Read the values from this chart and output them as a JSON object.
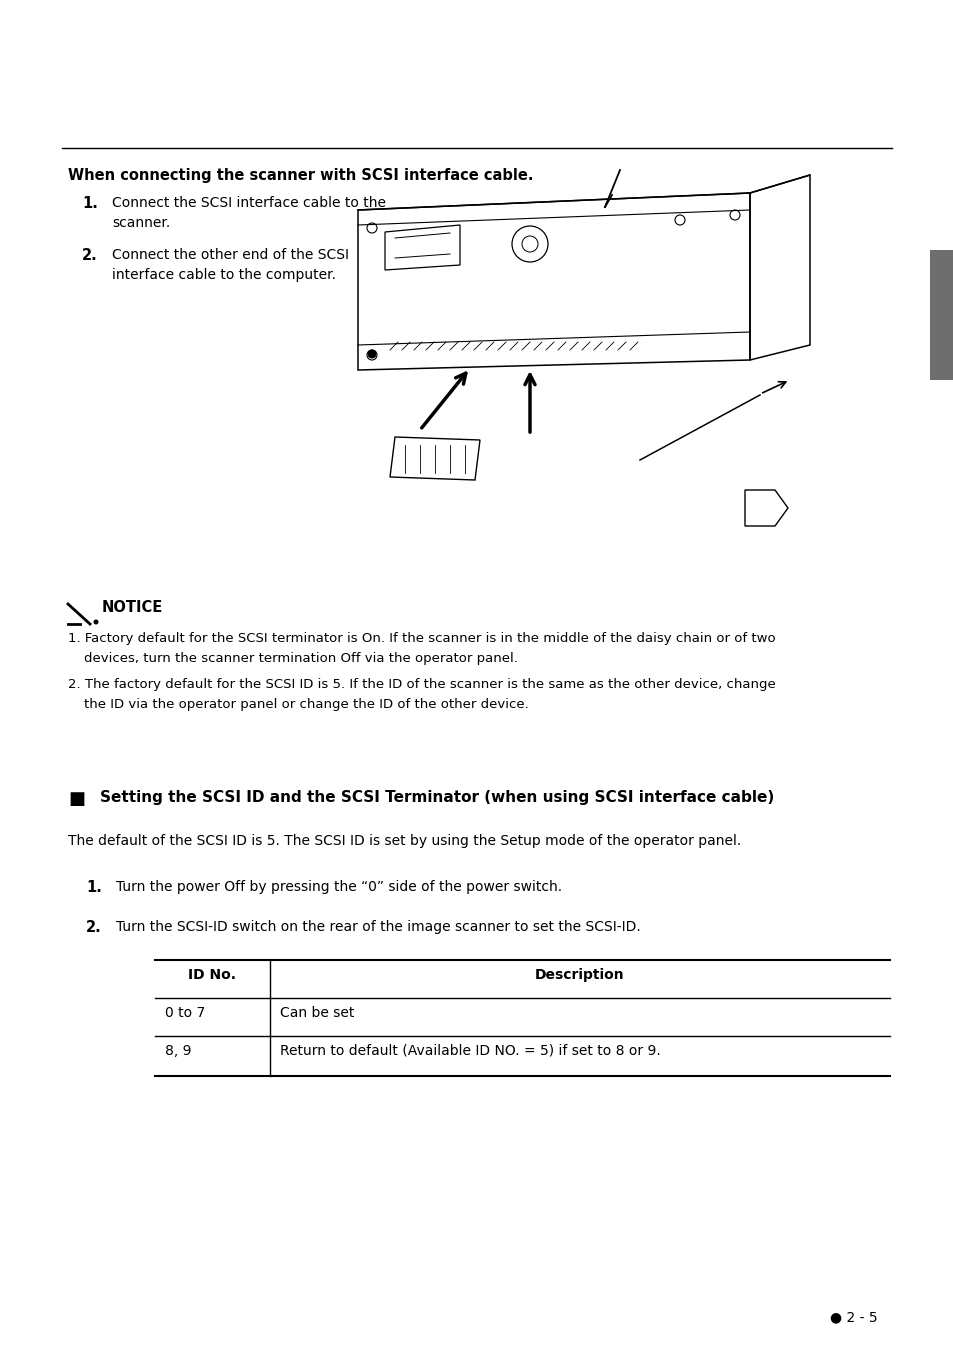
{
  "bg_color": "#ffffff",
  "header_title_part1": "When connecting the scanner with ",
  "header_title_bold": "SCSI interface cable",
  "header_title_end": ".",
  "step1_num": "1.",
  "step1_line1": "Connect the SCSI interface cable to the",
  "step1_line2": "scanner.",
  "step2_num": "2.",
  "step2_line1": "Connect the other end of the SCSI",
  "step2_line2": "interface cable to the computer.",
  "notice_label": "NOTICE",
  "notice1_line1": "1. Factory default for the SCSI terminator is On. If the scanner is in the middle of the daisy chain or of two",
  "notice1_line2": "   devices, turn the scanner termination Off via the operator panel.",
  "notice2_line1": "2. The factory default for the SCSI ID is 5. If the ID of the scanner is the same as the other device, change",
  "notice2_line2": "   the ID via the operator panel or change the ID of the other device.",
  "section_title": "Setting the SCSI ID and the SCSI Terminator (when using SCSI interface cable)",
  "section_body": "The default of the SCSI ID is 5. The SCSI ID is set by using the Setup mode of the operator panel.",
  "scsi_step1_num": "1.",
  "scsi_step1_text": "Turn the power Off by pressing the “0” side of the power switch.",
  "scsi_step2_num": "2.",
  "scsi_step2_text": "Turn the SCSI-ID switch on the rear of the image scanner to set the SCSI-ID.",
  "table_col1_header": "ID No.",
  "table_col2_header": "Description",
  "table_row1_col1": "0 to 7",
  "table_row1_col2": "Can be set",
  "table_row2_col1": "8, 9",
  "table_row2_col2": "Return to default (Available ID NO. = 5) if set to 8 or 9.",
  "page_num": "● 2 - 5",
  "tab_color": "#6e6e6e"
}
